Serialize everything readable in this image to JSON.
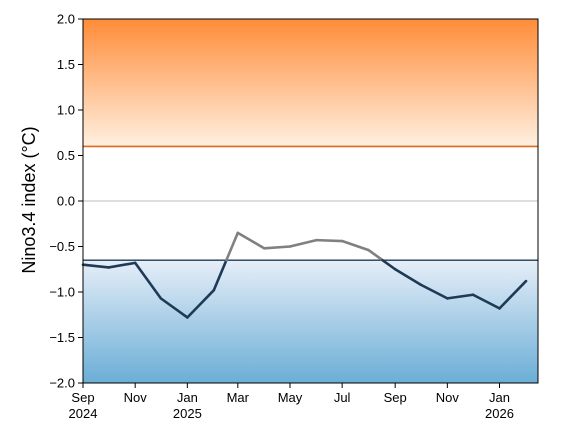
{
  "chart_data": {
    "type": "line",
    "title": "",
    "xlabel": "",
    "ylabel": "Nino3.4 index (°C)",
    "ylim": [
      -2.0,
      2.0
    ],
    "y_ticks": [
      {
        "value": 2.0,
        "label": "2.0"
      },
      {
        "value": 1.5,
        "label": "1.5"
      },
      {
        "value": 1.0,
        "label": "1.0"
      },
      {
        "value": 0.5,
        "label": "0.5"
      },
      {
        "value": 0.0,
        "label": "0.0"
      },
      {
        "value": -0.5,
        "label": "−0.5"
      },
      {
        "value": -1.0,
        "label": "−1.0"
      },
      {
        "value": -1.5,
        "label": "−1.5"
      },
      {
        "value": -2.0,
        "label": "−2.0"
      }
    ],
    "xlim": [
      "2024-09-01",
      "2026-02-15"
    ],
    "x_ticks": [
      {
        "date": "2024-09-01",
        "label": "Sep",
        "year": "2024"
      },
      {
        "date": "2024-11-01",
        "label": "Nov",
        "year": ""
      },
      {
        "date": "2025-01-01",
        "label": "Jan",
        "year": "2025"
      },
      {
        "date": "2025-03-01",
        "label": "Mar",
        "year": ""
      },
      {
        "date": "2025-05-01",
        "label": "May",
        "year": ""
      },
      {
        "date": "2025-07-01",
        "label": "Jul",
        "year": ""
      },
      {
        "date": "2025-09-01",
        "label": "Sep",
        "year": ""
      },
      {
        "date": "2025-11-01",
        "label": "Nov",
        "year": ""
      },
      {
        "date": "2026-01-01",
        "label": "Jan",
        "year": "2026"
      }
    ],
    "thresholds": {
      "el_nino": 0.6,
      "la_nina": -0.65,
      "zero": 0.0
    },
    "series": [
      {
        "name": "",
        "color_below": "#1f3a56",
        "color_above": "#808080",
        "points": [
          {
            "x": "2024-09-01",
            "y": -0.7
          },
          {
            "x": "2024-10-01",
            "y": -0.73
          },
          {
            "x": "2024-11-01",
            "y": -0.68
          },
          {
            "x": "2024-12-01",
            "y": -1.07
          },
          {
            "x": "2025-01-01",
            "y": -1.28
          },
          {
            "x": "2025-02-01",
            "y": -0.98
          },
          {
            "x": "2025-03-01",
            "y": -0.35
          },
          {
            "x": "2025-04-01",
            "y": -0.52
          },
          {
            "x": "2025-05-01",
            "y": -0.5
          },
          {
            "x": "2025-06-01",
            "y": -0.43
          },
          {
            "x": "2025-07-01",
            "y": -0.44
          },
          {
            "x": "2025-08-01",
            "y": -0.54
          },
          {
            "x": "2025-09-01",
            "y": -0.75
          },
          {
            "x": "2025-10-01",
            "y": -0.92
          },
          {
            "x": "2025-11-01",
            "y": -1.07
          },
          {
            "x": "2025-12-01",
            "y": -1.03
          },
          {
            "x": "2026-01-01",
            "y": -1.18
          },
          {
            "x": "2026-02-01",
            "y": -0.88
          }
        ]
      }
    ],
    "colors": {
      "warm_fill_top": "#ff8c38",
      "warm_fill_bottom": "#fff0e1",
      "warm_line": "#e0681a",
      "cool_fill_top": "#e6eef8",
      "cool_fill_bottom": "#6baed6",
      "cool_line": "#1f3a56",
      "zero_line": "#bdbdbd"
    },
    "grid": false,
    "legend": "none"
  }
}
